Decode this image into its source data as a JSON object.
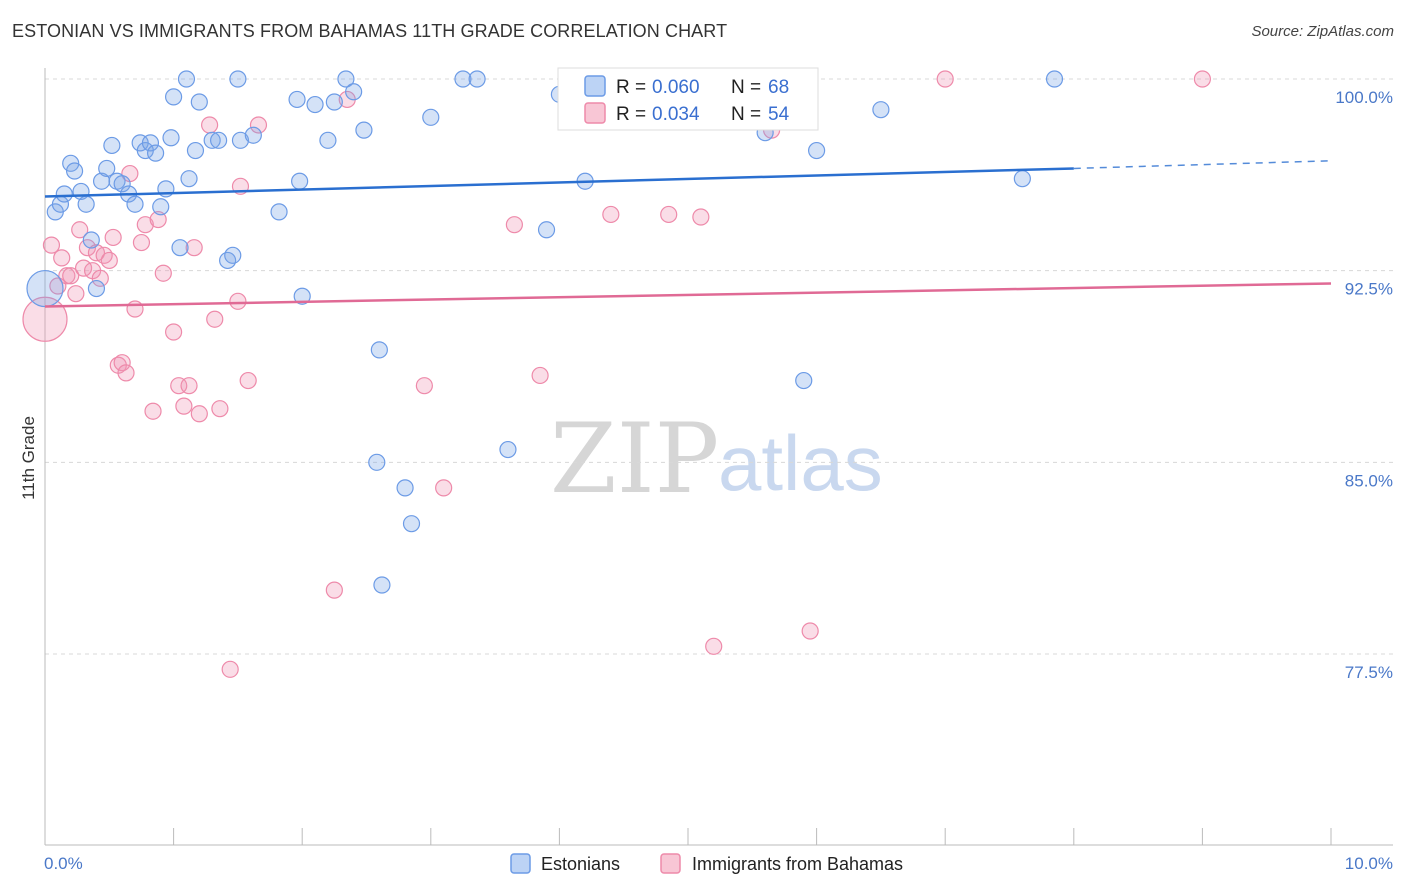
{
  "header": {
    "title": "ESTONIAN VS IMMIGRANTS FROM BAHAMAS 11TH GRADE CORRELATION CHART",
    "source": "Source: ZipAtlas.com"
  },
  "watermark": {
    "zip": "ZIP",
    "atlas": "atlas"
  },
  "legend_top": {
    "rows": [
      {
        "r_label": "R =",
        "r_value": "0.060",
        "n_label": "N =",
        "n_value": "68"
      },
      {
        "r_label": "R =",
        "r_value": "0.034",
        "n_label": "N =",
        "n_value": "54"
      }
    ]
  },
  "legend_bottom": {
    "items": [
      "Estonians",
      "Immigrants from Bahamas"
    ]
  },
  "chart_data": {
    "type": "scatter",
    "title": "ESTONIAN VS IMMIGRANTS FROM BAHAMAS 11TH GRADE CORRELATION CHART",
    "xlabel": "",
    "ylabel": "11th Grade",
    "xlim": [
      0,
      10
    ],
    "ylim": [
      70.0,
      101.0
    ],
    "x_tick_labels": [
      "0.0%",
      "10.0%"
    ],
    "y_ticks": [
      100.0,
      92.5,
      85.0,
      77.5
    ],
    "y_tick_labels": [
      "100.0%",
      "92.5%",
      "85.0%",
      "77.5%"
    ],
    "grid": true,
    "legend": "top-center",
    "colors": {
      "estonians": "#6c9be6",
      "bahamas": "#ee8aaa",
      "estonians_line": "#2a6fd0",
      "bahamas_line": "#e06a95"
    },
    "series": [
      {
        "name": "Estonians",
        "R": 0.06,
        "N": 68,
        "trend": {
          "x0": 0.0,
          "y0": 95.4,
          "x1": 8.0,
          "y1": 96.5,
          "dash_to_x": 10.0,
          "dash_to_y": 96.8
        },
        "points": [
          [
            0.0,
            91.8
          ],
          [
            0.08,
            94.8
          ],
          [
            0.12,
            95.1
          ],
          [
            0.15,
            95.5
          ],
          [
            0.2,
            96.7
          ],
          [
            0.23,
            96.4
          ],
          [
            0.28,
            95.6
          ],
          [
            0.32,
            95.1
          ],
          [
            0.36,
            93.7
          ],
          [
            0.4,
            91.8
          ],
          [
            0.44,
            96.0
          ],
          [
            0.48,
            96.5
          ],
          [
            0.52,
            97.4
          ],
          [
            0.56,
            96.0
          ],
          [
            0.6,
            95.9
          ],
          [
            0.65,
            95.5
          ],
          [
            0.7,
            95.1
          ],
          [
            0.74,
            97.5
          ],
          [
            0.78,
            97.2
          ],
          [
            0.82,
            97.5
          ],
          [
            0.86,
            97.1
          ],
          [
            0.9,
            95.0
          ],
          [
            0.94,
            95.7
          ],
          [
            0.98,
            97.7
          ],
          [
            1.0,
            99.3
          ],
          [
            1.05,
            93.4
          ],
          [
            1.1,
            100.0
          ],
          [
            1.12,
            96.1
          ],
          [
            1.17,
            97.2
          ],
          [
            1.2,
            99.1
          ],
          [
            1.3,
            97.6
          ],
          [
            1.35,
            97.6
          ],
          [
            1.42,
            92.9
          ],
          [
            1.46,
            93.1
          ],
          [
            1.5,
            100.0
          ],
          [
            1.52,
            97.6
          ],
          [
            1.62,
            97.8
          ],
          [
            1.82,
            94.8
          ],
          [
            1.96,
            99.2
          ],
          [
            1.98,
            96.0
          ],
          [
            2.0,
            91.5
          ],
          [
            2.1,
            99.0
          ],
          [
            2.2,
            97.6
          ],
          [
            2.25,
            99.1
          ],
          [
            2.34,
            100.0
          ],
          [
            2.4,
            99.5
          ],
          [
            2.48,
            98.0
          ],
          [
            2.58,
            85.0
          ],
          [
            2.6,
            89.4
          ],
          [
            2.62,
            80.2
          ],
          [
            2.8,
            84.0
          ],
          [
            2.85,
            82.6
          ],
          [
            3.0,
            98.5
          ],
          [
            3.25,
            100.0
          ],
          [
            3.36,
            100.0
          ],
          [
            3.6,
            85.5
          ],
          [
            3.9,
            94.1
          ],
          [
            4.0,
            99.4
          ],
          [
            4.2,
            96.0
          ],
          [
            5.0,
            99.4
          ],
          [
            5.2,
            100.0
          ],
          [
            5.6,
            97.9
          ],
          [
            5.93,
            100.0
          ],
          [
            5.9,
            88.2
          ],
          [
            6.0,
            97.2
          ],
          [
            6.5,
            98.8
          ],
          [
            7.6,
            96.1
          ],
          [
            7.85,
            100.0
          ]
        ]
      },
      {
        "name": "Immigrants from Bahamas",
        "R": 0.034,
        "N": 54,
        "trend": {
          "x0": 0.0,
          "y0": 91.1,
          "x1": 10.0,
          "y1": 92.0
        },
        "points": [
          [
            0.0,
            90.6
          ],
          [
            0.05,
            93.5
          ],
          [
            0.1,
            91.9
          ],
          [
            0.13,
            93.0
          ],
          [
            0.17,
            92.3
          ],
          [
            0.2,
            92.3
          ],
          [
            0.24,
            91.6
          ],
          [
            0.27,
            94.1
          ],
          [
            0.3,
            92.6
          ],
          [
            0.33,
            93.4
          ],
          [
            0.37,
            92.5
          ],
          [
            0.4,
            93.2
          ],
          [
            0.43,
            92.2
          ],
          [
            0.46,
            93.1
          ],
          [
            0.5,
            92.9
          ],
          [
            0.53,
            93.8
          ],
          [
            0.57,
            88.8
          ],
          [
            0.6,
            88.9
          ],
          [
            0.63,
            88.5
          ],
          [
            0.66,
            96.3
          ],
          [
            0.7,
            91.0
          ],
          [
            0.75,
            93.6
          ],
          [
            0.78,
            94.3
          ],
          [
            0.84,
            87.0
          ],
          [
            0.88,
            94.5
          ],
          [
            0.92,
            92.4
          ],
          [
            1.0,
            90.1
          ],
          [
            1.04,
            88.0
          ],
          [
            1.08,
            87.2
          ],
          [
            1.12,
            88.0
          ],
          [
            1.16,
            93.4
          ],
          [
            1.2,
            86.9
          ],
          [
            1.28,
            98.2
          ],
          [
            1.32,
            90.6
          ],
          [
            1.36,
            87.1
          ],
          [
            1.44,
            76.9
          ],
          [
            1.5,
            91.3
          ],
          [
            1.52,
            95.8
          ],
          [
            1.58,
            88.2
          ],
          [
            1.66,
            98.2
          ],
          [
            2.25,
            80.0
          ],
          [
            2.35,
            99.2
          ],
          [
            2.95,
            88.0
          ],
          [
            3.1,
            84.0
          ],
          [
            3.65,
            94.3
          ],
          [
            3.85,
            88.4
          ],
          [
            4.4,
            94.7
          ],
          [
            4.85,
            94.7
          ],
          [
            5.1,
            94.6
          ],
          [
            5.2,
            77.8
          ],
          [
            5.65,
            98.0
          ],
          [
            5.95,
            78.4
          ],
          [
            7.0,
            100.0
          ],
          [
            9.0,
            100.0
          ]
        ]
      }
    ]
  }
}
